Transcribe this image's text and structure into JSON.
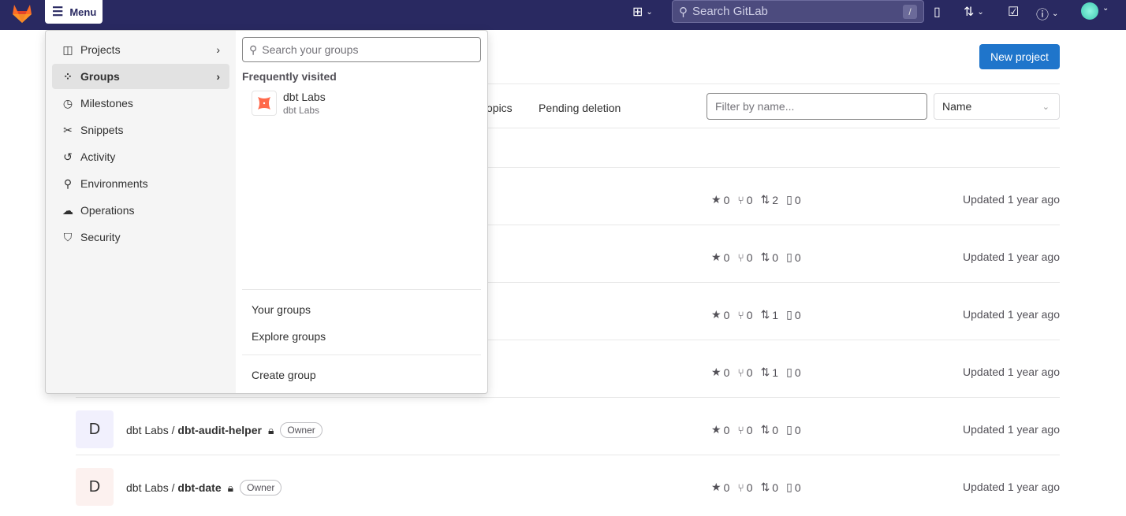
{
  "topbar": {
    "menu_label": "Menu",
    "search_placeholder": "Search GitLab",
    "search_shortcut": "/"
  },
  "page": {
    "new_project": "New project",
    "tabs": [
      "opics",
      "Pending deletion"
    ],
    "filter_placeholder": "Filter by name...",
    "sort_value": "Name"
  },
  "projects": [
    {
      "avatar": "",
      "namespace": "",
      "name": "",
      "role": "",
      "stars": "0",
      "forks": "0",
      "mrs": "2",
      "issues": "0",
      "updated": "Updated 1 year ago",
      "color": "#ffffff"
    },
    {
      "avatar": "",
      "namespace": "",
      "name": "",
      "role": "",
      "stars": "0",
      "forks": "0",
      "mrs": "0",
      "issues": "0",
      "updated": "Updated 1 year ago",
      "color": "#ffffff"
    },
    {
      "avatar": "",
      "namespace": "",
      "name": "",
      "role": "",
      "stars": "0",
      "forks": "0",
      "mrs": "1",
      "issues": "0",
      "updated": "Updated 1 year ago",
      "color": "#ffffff"
    },
    {
      "avatar": "",
      "namespace": "",
      "name": "",
      "role": "",
      "stars": "0",
      "forks": "0",
      "mrs": "1",
      "issues": "0",
      "updated": "Updated 1 year ago",
      "color": "#ffffff"
    },
    {
      "avatar": "D",
      "namespace": "dbt Labs / ",
      "name": "dbt-audit-helper",
      "role": "Owner",
      "stars": "0",
      "forks": "0",
      "mrs": "0",
      "issues": "0",
      "updated": "Updated 1 year ago",
      "color": "#f1f0fd"
    },
    {
      "avatar": "D",
      "namespace": "dbt Labs / ",
      "name": "dbt-date",
      "role": "Owner",
      "stars": "0",
      "forks": "0",
      "mrs": "0",
      "issues": "0",
      "updated": "Updated 1 year ago",
      "color": "#fcf1ef"
    }
  ],
  "menu": {
    "items": [
      {
        "label": "Projects",
        "icon": "project-icon",
        "glyph": "◫",
        "chevron": true
      },
      {
        "label": "Groups",
        "icon": "group-icon",
        "glyph": "⁘",
        "chevron": true,
        "active": true
      },
      {
        "label": "Milestones",
        "icon": "clock-icon",
        "glyph": "◷"
      },
      {
        "label": "Snippets",
        "icon": "scissors-icon",
        "glyph": "✂"
      },
      {
        "label": "Activity",
        "icon": "history-icon",
        "glyph": "↺"
      },
      {
        "label": "Environments",
        "icon": "environment-icon",
        "glyph": "⚲"
      },
      {
        "label": "Operations",
        "icon": "cloud-gear-icon",
        "glyph": "☁"
      },
      {
        "label": "Security",
        "icon": "shield-icon",
        "glyph": "⛉"
      }
    ],
    "groups_search_placeholder": "Search your groups",
    "frequently_visited": "Frequently visited",
    "group": {
      "name": "dbt Labs",
      "path": "dbt Labs"
    },
    "your_groups": "Your groups",
    "explore_groups": "Explore groups",
    "create_group": "Create group"
  },
  "colors": {
    "topbar": "#292961",
    "primary": "#1f75cb",
    "dbt": "#ff694b"
  }
}
